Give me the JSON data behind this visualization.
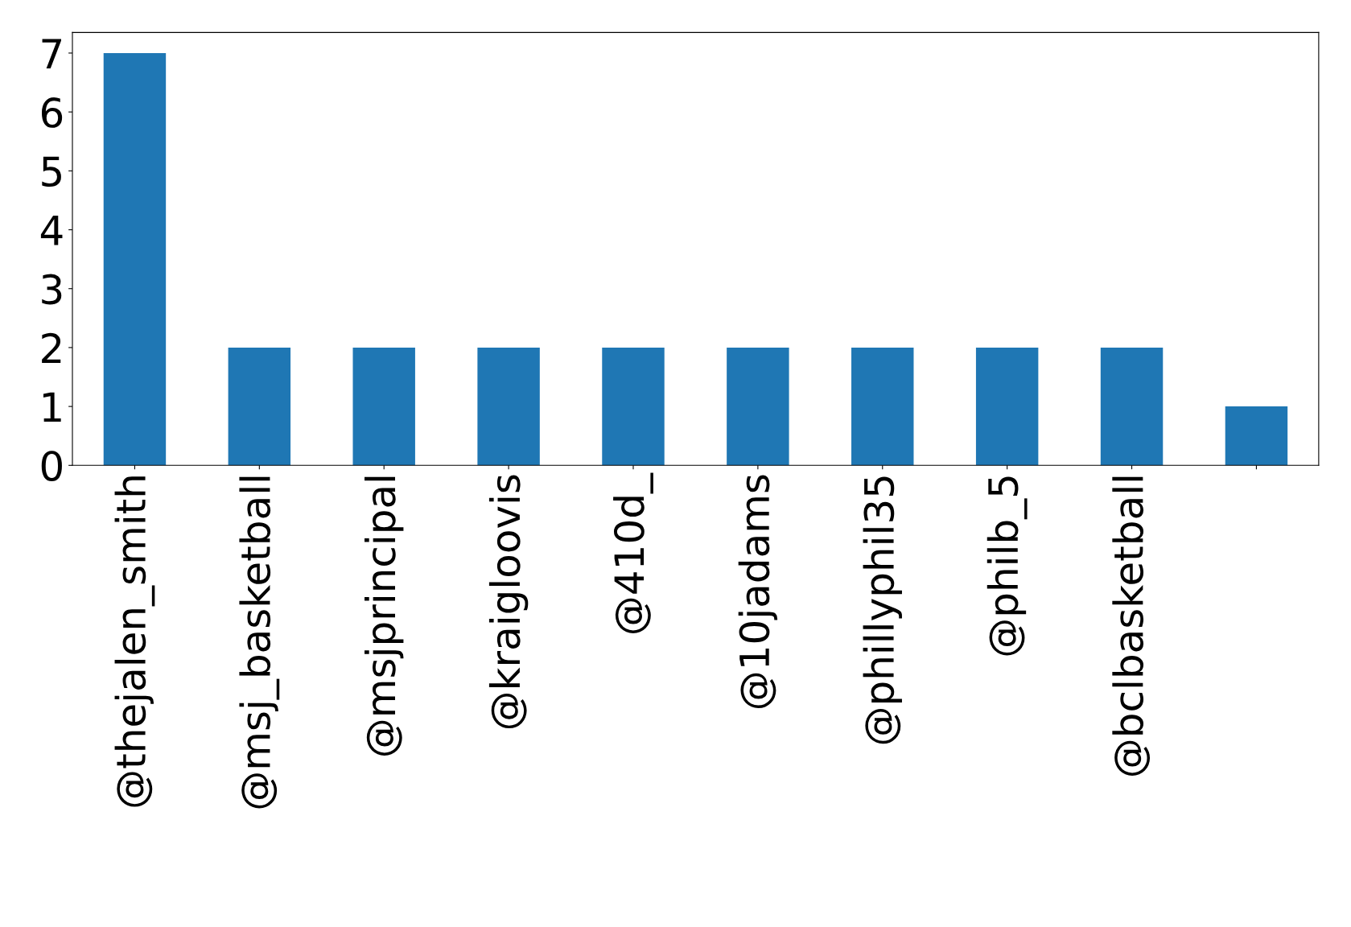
{
  "chart_data": {
    "type": "bar",
    "categories": [
      "@thejalen_smith",
      "@msj_basketball",
      "@msjprincipal",
      "@kraigloovis",
      "@410d_",
      "@10jadams",
      "@phillyphil35",
      "@philb_5",
      "@bclbasketball",
      null
    ],
    "values": [
      7,
      2,
      2,
      2,
      2,
      2,
      2,
      2,
      2,
      1
    ],
    "color": "#1f77b4",
    "ylim": [
      0,
      7.35
    ],
    "yticks": [
      0,
      1,
      2,
      3,
      4,
      5,
      6,
      7
    ],
    "grid": false,
    "legend": false
  }
}
